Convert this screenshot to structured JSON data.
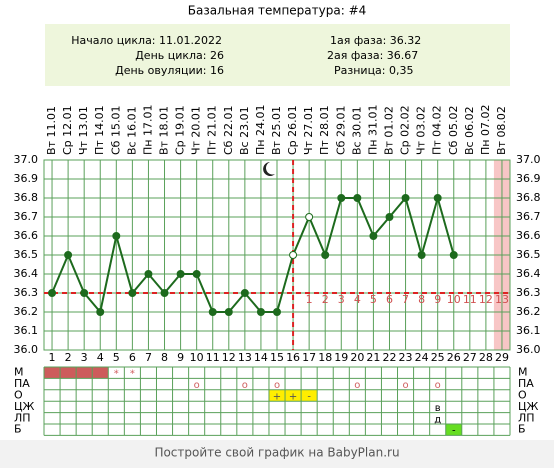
{
  "title": "Базальная температура: #4",
  "info": {
    "left": [
      "Начало цикла: 11.01.2022",
      "День цикла: 26",
      "День овуляции: 16"
    ],
    "right": [
      "1ая фаза: 36.32",
      "2ая фаза: 36.67",
      "Разница: 0,35"
    ]
  },
  "chart_data": {
    "type": "line",
    "categories": [
      "Вт 11.01",
      "Ср 12.01",
      "Чт 13.01",
      "Пт 14.01",
      "Сб 15.01",
      "Вс 16.01",
      "Пн 17.01",
      "Вт 18.01",
      "Ср 19.01",
      "Чт 20.01",
      "Пт 21.01",
      "Сб 22.01",
      "Вс 23.01",
      "Пн 24.01",
      "Вт 25.01",
      "Ср 26.01",
      "Чт 27.01",
      "Пт 28.01",
      "Сб 29.01",
      "Вс 30.01",
      "Пн 31.01",
      "Вт 01.02",
      "Ср 02.02",
      "Чт 03.02",
      "Пт 04.02",
      "Сб 05.02",
      "Вс 06.02",
      "Пн 07.02",
      "Вт 08.02"
    ],
    "days": [
      1,
      2,
      3,
      4,
      5,
      6,
      7,
      8,
      9,
      10,
      11,
      12,
      13,
      14,
      15,
      16,
      17,
      18,
      19,
      20,
      21,
      22,
      23,
      24,
      25,
      26,
      27,
      28,
      29
    ],
    "values": [
      36.3,
      36.5,
      36.3,
      36.2,
      36.6,
      36.3,
      36.4,
      36.3,
      36.4,
      36.4,
      36.2,
      36.2,
      36.3,
      36.2,
      36.2,
      36.5,
      36.7,
      36.5,
      36.8,
      36.8,
      36.6,
      36.7,
      36.8,
      36.5,
      36.8,
      36.5,
      null,
      null,
      null
    ],
    "color": "#1d6a1d",
    "hollow_markers": [
      16,
      17
    ],
    "ylim": [
      36,
      37
    ],
    "yticks": [
      {
        "value": 36,
        "label": "36.0"
      },
      36.1,
      36.2,
      36.3,
      36.4,
      36.5,
      36.6,
      36.7,
      36.8,
      36.9,
      {
        "value": 37,
        "label": "37.0"
      }
    ],
    "grid": true,
    "grid_color": "#5aa05a",
    "coverline": 36.3,
    "ovulation_day": 16,
    "marker_line_color": "#dd2222",
    "luteal_day_labels": [
      1,
      2,
      3,
      4,
      5,
      6,
      7,
      8,
      9,
      10,
      11,
      12,
      13
    ],
    "highlight_day": 29,
    "highlight_color": "#f8c6c6"
  },
  "table": {
    "rows": [
      {
        "label": "М",
        "text_color": "#d06060",
        "cells": [
          {
            "color": "#cd5c5c"
          },
          {
            "color": "#cd5c5c"
          },
          {
            "color": "#cd5c5c"
          },
          {
            "color": "#cd5c5c"
          },
          {
            "text": "*"
          },
          {
            "text": "*"
          },
          null,
          null,
          null,
          null,
          null,
          null,
          null,
          null,
          null,
          null,
          null,
          null,
          null,
          null,
          null,
          null,
          null,
          null,
          null,
          null,
          null,
          null,
          null
        ]
      },
      {
        "label": "ПА",
        "text_color": "#d06060",
        "cells": [
          null,
          null,
          null,
          null,
          null,
          null,
          null,
          null,
          null,
          {
            "text": "o"
          },
          null,
          null,
          {
            "text": "o"
          },
          null,
          {
            "text": "o"
          },
          null,
          null,
          null,
          null,
          {
            "text": "o"
          },
          null,
          null,
          {
            "text": "o"
          },
          null,
          {
            "text": "o"
          },
          null,
          null,
          null,
          null
        ]
      },
      {
        "label": "О",
        "text_color": "#555555",
        "cells": [
          null,
          null,
          null,
          null,
          null,
          null,
          null,
          null,
          null,
          null,
          null,
          null,
          null,
          null,
          {
            "text": "+",
            "color": "#ffee00"
          },
          {
            "text": "+",
            "color": "#ffee00"
          },
          {
            "text": "-",
            "color": "#ffee00"
          },
          null,
          null,
          null,
          null,
          null,
          null,
          null,
          null,
          null,
          null,
          null,
          null
        ]
      },
      {
        "label": "ЦЖ",
        "text_color": "#000000",
        "cells": [
          null,
          null,
          null,
          null,
          null,
          null,
          null,
          null,
          null,
          null,
          null,
          null,
          null,
          null,
          null,
          null,
          null,
          null,
          null,
          null,
          null,
          null,
          null,
          null,
          {
            "text": "в"
          },
          null,
          null,
          null,
          null
        ]
      },
      {
        "label": "ЛП",
        "text_color": "#000000",
        "cells": [
          null,
          null,
          null,
          null,
          null,
          null,
          null,
          null,
          null,
          null,
          null,
          null,
          null,
          null,
          null,
          null,
          null,
          null,
          null,
          null,
          null,
          null,
          null,
          null,
          {
            "text": "д"
          },
          null,
          null,
          null,
          null
        ]
      },
      {
        "label": "Б",
        "text_color": "#000000",
        "cells": [
          null,
          null,
          null,
          null,
          null,
          null,
          null,
          null,
          null,
          null,
          null,
          null,
          null,
          null,
          null,
          null,
          null,
          null,
          null,
          null,
          null,
          null,
          null,
          null,
          null,
          {
            "text": "-",
            "color": "#66dd22"
          },
          null,
          null,
          null
        ]
      }
    ]
  },
  "footer": "Постройте свой график на BabyPlan.ru"
}
